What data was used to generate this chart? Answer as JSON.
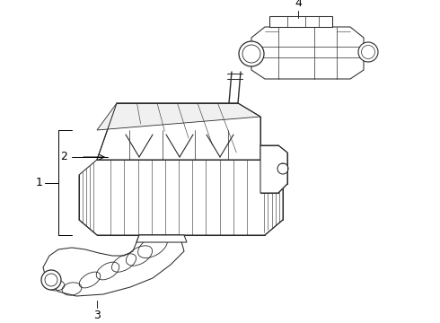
{
  "background_color": "#ffffff",
  "line_color": "#2a2a2a",
  "label_color": "#000000",
  "figsize": [
    4.9,
    3.6
  ],
  "dpi": 100,
  "lw": 0.75
}
